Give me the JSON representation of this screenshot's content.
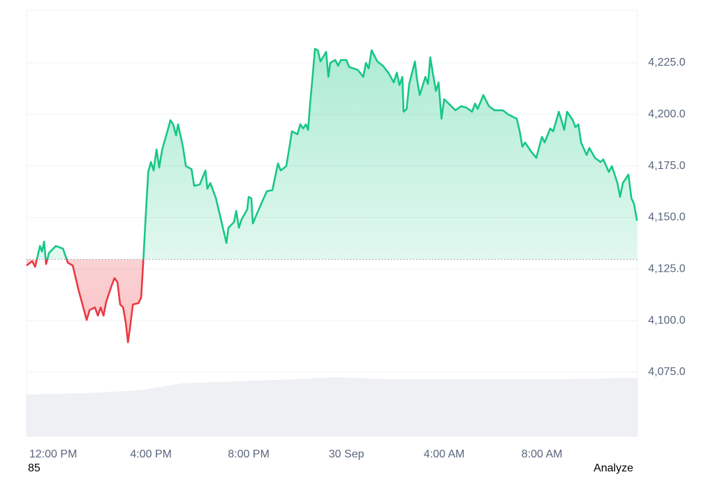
{
  "chart_data": {
    "type": "line",
    "x": [
      -1.09,
      -0.86,
      -0.74,
      -0.54,
      -0.46,
      -0.37,
      -0.29,
      -0.17,
      0.11,
      0.4,
      0.6,
      0.8,
      1.03,
      1.26,
      1.37,
      1.49,
      1.71,
      1.83,
      1.94,
      2.06,
      2.17,
      2.4,
      2.51,
      2.63,
      2.74,
      2.86,
      2.97,
      3.06,
      3.14,
      3.26,
      3.49,
      3.6,
      3.69,
      3.77,
      3.89,
      4.0,
      4.11,
      4.23,
      4.34,
      4.46,
      4.69,
      4.8,
      4.91,
      5.03,
      5.11,
      5.31,
      5.43,
      5.66,
      5.77,
      6.0,
      6.23,
      6.31,
      6.43,
      6.66,
      6.89,
      7.09,
      7.17,
      7.4,
      7.49,
      7.6,
      7.71,
      7.94,
      8.0,
      8.11,
      8.17,
      8.29,
      8.51,
      8.74,
      8.97,
      9.2,
      9.31,
      9.54,
      9.66,
      9.77,
      10.0,
      10.11,
      10.23,
      10.34,
      10.43,
      10.51,
      10.63,
      10.71,
      10.83,
      10.94,
      11.17,
      11.26,
      11.34,
      11.54,
      11.66,
      11.77,
      12.0,
      12.11,
      12.46,
      12.69,
      12.8,
      12.91,
      13.03,
      13.26,
      13.49,
      13.71,
      13.94,
      14.06,
      14.17,
      14.29,
      14.34,
      14.46,
      14.57,
      14.8,
      14.89,
      15.0,
      15.23,
      15.34,
      15.43,
      15.54,
      15.66,
      15.77,
      15.89,
      16.0,
      16.23,
      16.46,
      16.69,
      16.91,
      17.14,
      17.26,
      17.37,
      17.6,
      17.83,
      18.06,
      18.4,
      18.63,
      18.97,
      19.09,
      19.2,
      19.31,
      19.54,
      19.77,
      19.89,
      20.0,
      20.11,
      20.34,
      20.46,
      20.69,
      20.8,
      20.91,
      21.03,
      21.26,
      21.37,
      21.49,
      21.6,
      21.83,
      21.94,
      22.17,
      22.4,
      22.51,
      22.74,
      22.86,
      23.09,
      23.2,
      23.31,
      23.54,
      23.66,
      23.77,
      23.89
    ],
    "values": [
      4126.7,
      4128.8,
      4126.1,
      4136.2,
      4133.5,
      4138.3,
      4127.4,
      4132.8,
      4136.2,
      4134.9,
      4128.1,
      4126.7,
      4115.2,
      4105.1,
      4100.3,
      4105.1,
      4106.4,
      4102.4,
      4106.4,
      4102.4,
      4109.1,
      4117.3,
      4120.6,
      4118.6,
      4107.8,
      4106.4,
      4099.0,
      4089.5,
      4096.3,
      4107.8,
      4108.5,
      4111.2,
      4129.5,
      4147.1,
      4172.1,
      4176.9,
      4172.8,
      4183.0,
      4174.2,
      4183.0,
      4192.5,
      4197.2,
      4195.2,
      4189.8,
      4195.2,
      4184.3,
      4174.9,
      4173.5,
      4165.4,
      4166.0,
      4172.8,
      4164.0,
      4166.7,
      4159.3,
      4147.8,
      4137.6,
      4145.0,
      4147.8,
      4153.2,
      4145.0,
      4149.1,
      4153.9,
      4160.0,
      4159.3,
      4147.1,
      4150.5,
      4156.6,
      4162.7,
      4163.3,
      4176.2,
      4172.8,
      4174.9,
      4183.7,
      4191.8,
      4190.4,
      4195.2,
      4193.2,
      4195.2,
      4192.5,
      4204.7,
      4220.3,
      4231.8,
      4231.1,
      4225.7,
      4230.4,
      4218.2,
      4225.0,
      4226.4,
      4223.6,
      4226.4,
      4226.4,
      4223.0,
      4221.6,
      4218.2,
      4225.0,
      4222.3,
      4231.1,
      4225.7,
      4223.6,
      4220.3,
      4215.5,
      4220.3,
      4214.2,
      4218.2,
      4201.3,
      4202.6,
      4214.8,
      4225.7,
      4216.9,
      4209.4,
      4218.2,
      4214.8,
      4227.7,
      4219.6,
      4211.4,
      4215.5,
      4197.9,
      4207.4,
      4204.7,
      4202.0,
      4204.0,
      4203.3,
      4201.3,
      4205.3,
      4202.6,
      4209.4,
      4204.0,
      4202.0,
      4202.0,
      4199.9,
      4197.9,
      4191.8,
      4184.3,
      4186.4,
      4182.3,
      4178.9,
      4184.3,
      4189.1,
      4186.4,
      4193.2,
      4191.8,
      4201.3,
      4197.2,
      4192.5,
      4201.3,
      4197.2,
      4193.8,
      4195.2,
      4186.4,
      4180.3,
      4183.7,
      4178.9,
      4176.9,
      4178.2,
      4172.1,
      4174.9,
      4166.7,
      4160.0,
      4166.7,
      4170.8,
      4159.3,
      4156.6,
      4148.4
    ],
    "up_color": "#16c784",
    "down_color": "#ea3943",
    "baseline": 4129.7,
    "xlim": [
      -1.09,
      23.91
    ],
    "xticks": [
      {
        "value": 0,
        "label": "12:00 PM"
      },
      {
        "value": 4,
        "label": "4:00 PM"
      },
      {
        "value": 8,
        "label": "8:00 PM"
      },
      {
        "value": 12,
        "label": "30 Sep"
      },
      {
        "value": 16,
        "label": "4:00 AM"
      },
      {
        "value": 20,
        "label": "8:00 AM"
      }
    ],
    "ylim": [
      4043.8,
      4250.4
    ],
    "yticks": [
      {
        "value": 4075,
        "label": "4,075.0"
      },
      {
        "value": 4100,
        "label": "4,100.0"
      },
      {
        "value": 4125,
        "label": "4,125.0"
      },
      {
        "value": 4150,
        "label": "4,150.0"
      },
      {
        "value": 4175,
        "label": "4,175.0"
      },
      {
        "value": 4200,
        "label": "4,200.0"
      },
      {
        "value": 4225,
        "label": "4,225.0"
      }
    ],
    "grid": true,
    "annotations": [
      "85",
      "Analyze"
    ]
  }
}
